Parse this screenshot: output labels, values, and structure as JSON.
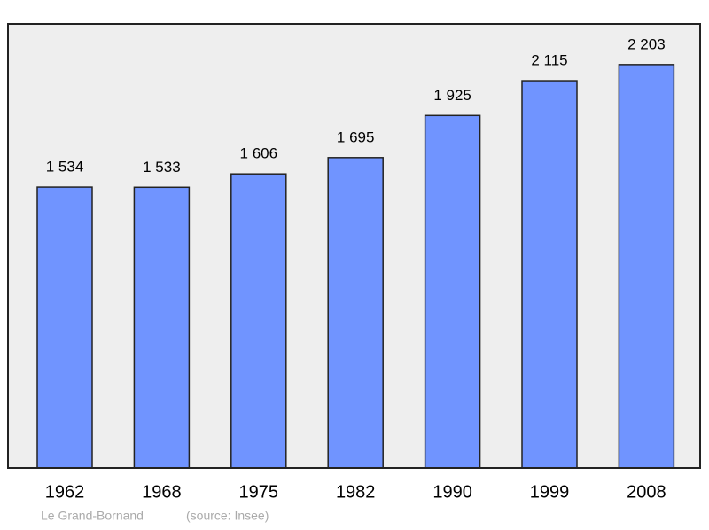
{
  "chart_data": {
    "type": "bar",
    "categories": [
      "1962",
      "1968",
      "1975",
      "1982",
      "1990",
      "1999",
      "2008"
    ],
    "values": [
      1534,
      1533,
      1606,
      1695,
      1925,
      2115,
      2203
    ],
    "value_labels": [
      "1 534",
      "1 533",
      "1 606",
      "1 695",
      "1 925",
      "2 115",
      "2 203"
    ],
    "color": "#7094ff",
    "ylim": [
      0,
      2425
    ],
    "annotations": [
      "Le Grand-Bornand",
      "(source: Insee)"
    ]
  }
}
